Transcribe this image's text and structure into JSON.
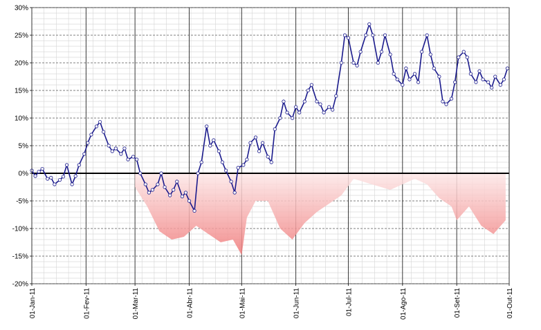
{
  "chart_data": {
    "type": "line",
    "title": "",
    "xlabel": "",
    "ylabel": "",
    "ylim": [
      -20,
      30
    ],
    "y_unit": "%",
    "y_ticks": [
      30,
      25,
      20,
      15,
      10,
      5,
      0,
      -5,
      -10,
      -15,
      -20
    ],
    "y_tick_labels": [
      "30%",
      "25%",
      "20%",
      "15%",
      "10%",
      "5%",
      "0%",
      "-5%",
      "-10%",
      "-15%",
      "-20%"
    ],
    "xlim": [
      "2011-01-01",
      "2011-10-01"
    ],
    "x_ticks": [
      "2011-01-01",
      "2011-02-01",
      "2011-03-01",
      "2011-04-01",
      "2011-05-01",
      "2011-06-01",
      "2011-07-01",
      "2011-08-01",
      "2011-09-01",
      "2011-10-01"
    ],
    "x_tick_labels": [
      "01-Jan-11",
      "01-Fev-11",
      "01-Mar-11",
      "01-Abr-11",
      "01-Mai-11",
      "01-Jun-11",
      "01-Jul-11",
      "01-Ago-11",
      "01-Set-11",
      "01-Out-11"
    ],
    "grid": true,
    "legend": "none",
    "colors": {
      "line": "#1a1a8c",
      "marker_fill": "#ffffff",
      "drawdown_deep": "#f07a7a",
      "drawdown_light": "#fde8e8",
      "zero_line": "#000000",
      "grid": "#666666"
    },
    "series": [
      {
        "type": "line",
        "x": [
          "2011-01-01",
          "2011-01-03",
          "2011-01-05",
          "2011-01-07",
          "2011-01-10",
          "2011-01-12",
          "2011-01-14",
          "2011-01-17",
          "2011-01-19",
          "2011-01-21",
          "2011-01-24",
          "2011-01-26",
          "2011-01-28",
          "2011-01-31",
          "2011-02-02",
          "2011-02-04",
          "2011-02-07",
          "2011-02-09",
          "2011-02-11",
          "2011-02-14",
          "2011-02-16",
          "2011-02-18",
          "2011-02-21",
          "2011-02-23",
          "2011-02-25",
          "2011-02-28",
          "2011-03-02",
          "2011-03-04",
          "2011-03-07",
          "2011-03-09",
          "2011-03-11",
          "2011-03-14",
          "2011-03-16",
          "2011-03-18",
          "2011-03-21",
          "2011-03-23",
          "2011-03-25",
          "2011-03-28",
          "2011-03-30",
          "2011-04-01",
          "2011-04-04",
          "2011-04-06",
          "2011-04-08",
          "2011-04-11",
          "2011-04-13",
          "2011-04-15",
          "2011-04-18",
          "2011-04-20",
          "2011-04-22",
          "2011-04-25",
          "2011-04-27",
          "2011-04-29",
          "2011-05-02",
          "2011-05-04",
          "2011-05-06",
          "2011-05-09",
          "2011-05-11",
          "2011-05-13",
          "2011-05-16",
          "2011-05-18",
          "2011-05-20",
          "2011-05-23",
          "2011-05-25",
          "2011-05-27",
          "2011-05-30",
          "2011-06-01",
          "2011-06-03",
          "2011-06-06",
          "2011-06-08",
          "2011-06-10",
          "2011-06-13",
          "2011-06-15",
          "2011-06-17",
          "2011-06-20",
          "2011-06-22",
          "2011-06-24",
          "2011-06-27",
          "2011-06-29",
          "2011-07-01",
          "2011-07-04",
          "2011-07-06",
          "2011-07-08",
          "2011-07-11",
          "2011-07-13",
          "2011-07-15",
          "2011-07-18",
          "2011-07-20",
          "2011-07-22",
          "2011-07-25",
          "2011-07-27",
          "2011-07-29",
          "2011-08-01",
          "2011-08-03",
          "2011-08-05",
          "2011-08-08",
          "2011-08-10",
          "2011-08-12",
          "2011-08-15",
          "2011-08-17",
          "2011-08-19",
          "2011-08-22",
          "2011-08-24",
          "2011-08-26",
          "2011-08-29",
          "2011-08-31",
          "2011-09-02",
          "2011-09-05",
          "2011-09-07",
          "2011-09-09",
          "2011-09-12",
          "2011-09-14",
          "2011-09-16",
          "2011-09-19",
          "2011-09-21",
          "2011-09-23",
          "2011-09-26",
          "2011-09-28",
          "2011-09-30"
        ],
        "y": [
          0.5,
          -0.5,
          0.3,
          0.8,
          -1.0,
          -0.8,
          -2.0,
          -1.2,
          -0.6,
          1.5,
          -2.0,
          -0.5,
          1.5,
          3.5,
          5.5,
          7.0,
          8.5,
          9.3,
          7.5,
          5.0,
          4.0,
          4.5,
          3.5,
          4.5,
          2.5,
          3.0,
          2.5,
          0.0,
          -2.0,
          -3.5,
          -3.0,
          -2.0,
          0.0,
          -2.5,
          -4.0,
          -3.0,
          -1.5,
          -4.2,
          -3.5,
          -5.0,
          -6.8,
          0.0,
          2.0,
          8.5,
          5.0,
          6.0,
          4.0,
          2.0,
          0.5,
          -1.5,
          -3.5,
          1.0,
          1.5,
          2.5,
          5.5,
          6.5,
          4.0,
          5.5,
          3.0,
          2.0,
          8.0,
          10.0,
          13.0,
          11.0,
          10.0,
          12.0,
          11.0,
          13.0,
          15.0,
          16.0,
          13.0,
          12.5,
          11.0,
          12.0,
          11.5,
          14.0,
          20.0,
          25.0,
          24.5,
          20.0,
          19.5,
          22.0,
          25.0,
          27.0,
          25.0,
          20.0,
          22.0,
          25.0,
          21.5,
          18.0,
          17.0,
          16.0,
          19.0,
          17.0,
          18.0,
          16.5,
          22.0,
          25.0,
          21.5,
          19.0,
          17.5,
          13.0,
          12.5,
          13.5,
          16.5,
          21.0,
          22.0,
          21.0,
          18.0,
          16.5,
          18.5,
          17.0,
          16.5,
          15.5,
          17.5,
          16.0,
          17.0,
          19.0
        ]
      },
      {
        "type": "area",
        "name": "",
        "x": [
          "2011-03-01",
          "2011-03-08",
          "2011-03-15",
          "2011-03-22",
          "2011-03-29",
          "2011-04-05",
          "2011-04-12",
          "2011-04-19",
          "2011-04-26",
          "2011-05-01",
          "2011-05-04",
          "2011-05-09",
          "2011-05-16",
          "2011-05-23",
          "2011-05-30",
          "2011-06-06",
          "2011-06-13",
          "2011-06-20",
          "2011-06-27",
          "2011-07-04",
          "2011-07-25",
          "2011-08-08",
          "2011-08-15",
          "2011-08-22",
          "2011-08-29",
          "2011-09-01",
          "2011-09-08",
          "2011-09-15",
          "2011-09-22",
          "2011-09-29"
        ],
        "y": [
          -2.5,
          -6.0,
          -10.5,
          -12.0,
          -11.5,
          -9.5,
          -11.0,
          -12.5,
          -12.0,
          -14.8,
          -8.0,
          -5.0,
          -5.0,
          -10.0,
          -12.0,
          -9.0,
          -7.0,
          -5.5,
          -4.0,
          -1.0,
          -3.0,
          -1.0,
          -2.0,
          -4.5,
          -6.0,
          -8.5,
          -6.0,
          -9.5,
          -11.0,
          -8.5
        ]
      }
    ]
  }
}
